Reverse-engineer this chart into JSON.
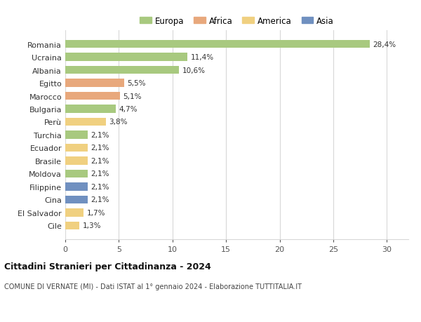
{
  "countries": [
    "Romania",
    "Ucraina",
    "Albania",
    "Egitto",
    "Marocco",
    "Bulgaria",
    "Perù",
    "Turchia",
    "Ecuador",
    "Brasile",
    "Moldova",
    "Filippine",
    "Cina",
    "El Salvador",
    "Cile"
  ],
  "values": [
    28.4,
    11.4,
    10.6,
    5.5,
    5.1,
    4.7,
    3.8,
    2.1,
    2.1,
    2.1,
    2.1,
    2.1,
    2.1,
    1.7,
    1.3
  ],
  "labels": [
    "28,4%",
    "11,4%",
    "10,6%",
    "5,5%",
    "5,1%",
    "4,7%",
    "3,8%",
    "2,1%",
    "2,1%",
    "2,1%",
    "2,1%",
    "2,1%",
    "2,1%",
    "1,7%",
    "1,3%"
  ],
  "continents": [
    "Europa",
    "Europa",
    "Europa",
    "Africa",
    "Africa",
    "Europa",
    "America",
    "Europa",
    "America",
    "America",
    "Europa",
    "Asia",
    "Asia",
    "America",
    "America"
  ],
  "continent_colors": {
    "Europa": "#a8c97f",
    "Africa": "#e8a87c",
    "America": "#f0d080",
    "Asia": "#7090c0"
  },
  "legend_order": [
    "Europa",
    "Africa",
    "America",
    "Asia"
  ],
  "title": "Cittadini Stranieri per Cittadinanza - 2024",
  "subtitle": "COMUNE DI VERNATE (MI) - Dati ISTAT al 1° gennaio 2024 - Elaborazione TUTTITALIA.IT",
  "xlim": [
    0,
    32
  ],
  "xticks": [
    0,
    5,
    10,
    15,
    20,
    25,
    30
  ],
  "bg_color": "#ffffff",
  "grid_color": "#d8d8d8",
  "bar_height": 0.62
}
